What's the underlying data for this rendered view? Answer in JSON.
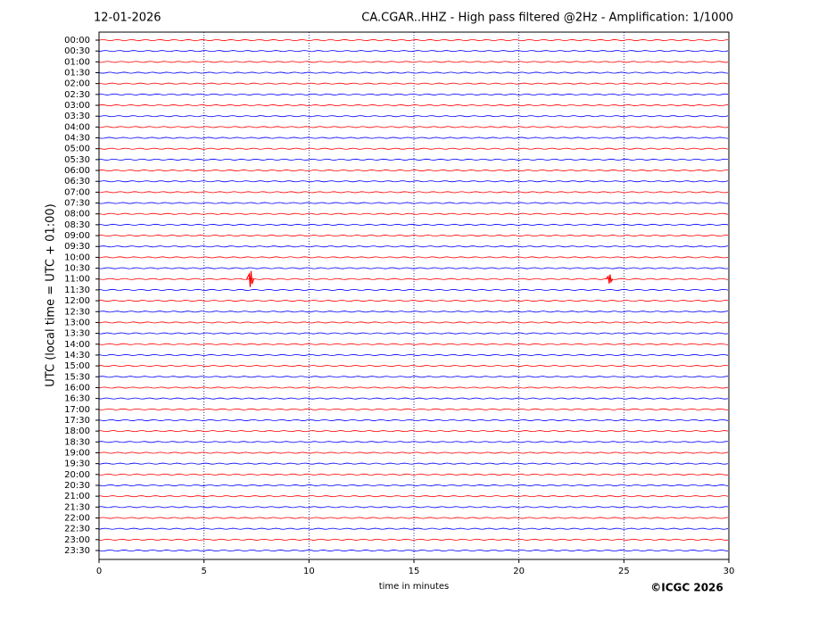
{
  "chart_data": {
    "type": "helicorder",
    "title_left": "12-01-2026",
    "title": "CA.CGAR..HHZ - High pass filtered @2Hz - Amplification: 1/1000",
    "xlabel": "time in minutes",
    "ylabel": "UTC (local time = UTC + 01:00)",
    "copyright": "©ICGC 2026",
    "rows": [
      "00:00",
      "00:30",
      "01:00",
      "01:30",
      "02:00",
      "02:30",
      "03:00",
      "03:30",
      "04:00",
      "04:30",
      "05:00",
      "05:30",
      "06:00",
      "06:30",
      "07:00",
      "07:30",
      "08:00",
      "08:30",
      "09:00",
      "09:30",
      "10:00",
      "10:30",
      "11:00",
      "11:30",
      "12:00",
      "12:30",
      "13:00",
      "13:30",
      "14:00",
      "14:30",
      "15:00",
      "15:30",
      "16:00",
      "16:30",
      "17:00",
      "17:30",
      "18:00",
      "18:30",
      "19:00",
      "19:30",
      "20:00",
      "20:30",
      "21:00",
      "21:30",
      "22:00",
      "22:30",
      "23:00",
      "23:30"
    ],
    "colors": [
      "#ff0000",
      "#0000ff"
    ],
    "xlim": [
      0,
      30
    ],
    "xticks": [
      0,
      5,
      10,
      15,
      20,
      25,
      30
    ],
    "grid": true,
    "events": [
      {
        "row": 22,
        "x": 7.2
      },
      {
        "row": 22,
        "x": 24.3
      }
    ]
  }
}
